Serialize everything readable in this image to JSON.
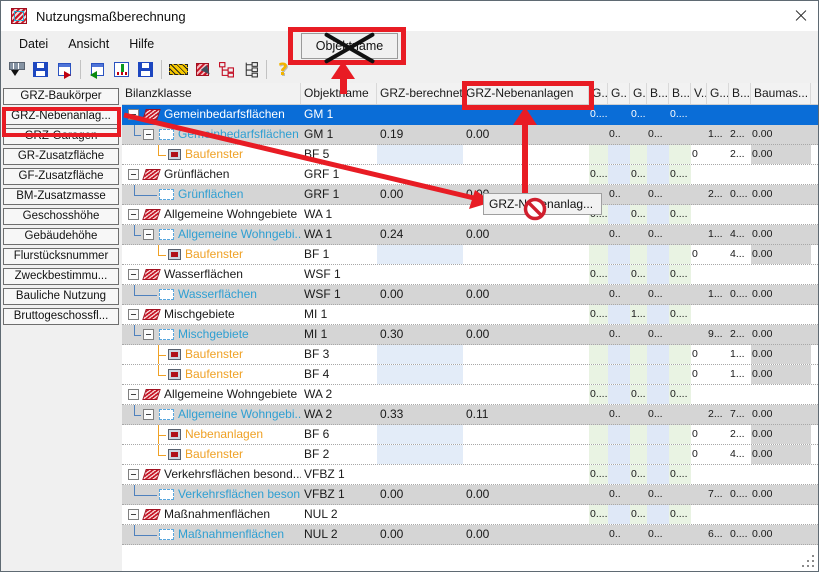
{
  "window": {
    "title": "Nutzungsmaßberechnung"
  },
  "menu": {
    "items": [
      "Datei",
      "Ansicht",
      "Hilfe"
    ]
  },
  "toolbar": {
    "icons": [
      "filter-columns-icon",
      "save-icon",
      "export-window-icon",
      "import-window-icon",
      "save-table-icon",
      "save-all-icon",
      "selection-box-icon",
      "select-object-icon",
      "tree-red-icon",
      "tree-outline-icon",
      "help-icon"
    ]
  },
  "sidebar": {
    "items": [
      {
        "label": "GRZ-Baukörper",
        "highlighted": false
      },
      {
        "label": "GRZ-Nebenanlag...",
        "highlighted": true
      },
      {
        "label": "GRZ-Garagen",
        "highlighted": false
      },
      {
        "label": "GR-Zusatzfläche",
        "highlighted": false
      },
      {
        "label": "GF-Zusatzfläche",
        "highlighted": false
      },
      {
        "label": "BM-Zusatzmasse",
        "highlighted": false
      },
      {
        "label": "Geschosshöhe",
        "highlighted": false
      },
      {
        "label": "Gebäudehöhe",
        "highlighted": false
      },
      {
        "label": "Flurstücksnummer",
        "highlighted": false
      },
      {
        "label": "Zweckbestimmu...",
        "highlighted": false
      },
      {
        "label": "Bauliche Nutzung",
        "highlighted": false
      },
      {
        "label": "Bruttogeschossfl...",
        "highlighted": false
      }
    ]
  },
  "table": {
    "columns": [
      "Bilanzklasse",
      "Objektname",
      "GRZ-berechnet",
      "GRZ-Nebenanlagen",
      "G...",
      "G..",
      "G..",
      "B...",
      "B...",
      "V..",
      "G...",
      "B...",
      "Baumas..."
    ],
    "rows": [
      {
        "kind": "parent",
        "selected": true,
        "conn": "none",
        "exp": true,
        "label": "Gemeinbedarfsflächen",
        "obj": "GM 1",
        "gb": "",
        "gn": "",
        "c": [
          "0....",
          "",
          "0...",
          "",
          "0....",
          "",
          "",
          "",
          ""
        ]
      },
      {
        "kind": "child",
        "selected": false,
        "conn": "L",
        "exp": true,
        "label": "Gemeinbedarfsflächen",
        "obj": "GM 1",
        "gb": "0.19",
        "gn": "0.00",
        "c": [
          "",
          "0..",
          "",
          "0...",
          "",
          "",
          "1...",
          "2...",
          "0.00"
        ]
      },
      {
        "kind": "leaf",
        "selected": false,
        "conn": "L",
        "exp": false,
        "label": "Baufenster",
        "obj": "BF 5",
        "gb": "",
        "gn": "",
        "c": [
          "",
          "",
          "",
          "",
          "",
          "0",
          "",
          "2...",
          "0.00"
        ]
      },
      {
        "kind": "parent",
        "selected": false,
        "conn": "none",
        "exp": true,
        "label": "Grünflächen",
        "obj": "GRF 1",
        "gb": "",
        "gn": "",
        "c": [
          "0....",
          "",
          "0...",
          "",
          "0....",
          "",
          "",
          "",
          ""
        ]
      },
      {
        "kind": "child",
        "selected": false,
        "conn": "L",
        "exp": false,
        "label": "Grünflächen",
        "obj": "GRF 1",
        "gb": "0.00",
        "gn": "0.00",
        "c": [
          "",
          "0..",
          "",
          "0...",
          "",
          "",
          "2...",
          "0....",
          "0.00"
        ]
      },
      {
        "kind": "parent",
        "selected": false,
        "conn": "none",
        "exp": true,
        "label": "Allgemeine Wohngebiete",
        "obj": "WA 1",
        "gb": "",
        "gn": "",
        "c": [
          "0....",
          "",
          "0...",
          "",
          "0....",
          "",
          "",
          "",
          ""
        ]
      },
      {
        "kind": "child",
        "selected": false,
        "conn": "L",
        "exp": true,
        "label": "Allgemeine Wohngebi...",
        "obj": "WA 1",
        "gb": "0.24",
        "gn": "0.00",
        "c": [
          "",
          "0..",
          "",
          "0...",
          "",
          "",
          "1...",
          "4...",
          "0.00"
        ]
      },
      {
        "kind": "leaf",
        "selected": false,
        "conn": "L",
        "exp": false,
        "label": "Baufenster",
        "obj": "BF 1",
        "gb": "",
        "gn": "",
        "c": [
          "",
          "",
          "",
          "",
          "",
          "0",
          "",
          "4...",
          "0.00"
        ]
      },
      {
        "kind": "parent",
        "selected": false,
        "conn": "none",
        "exp": true,
        "label": "Wasserflächen",
        "obj": "WSF 1",
        "gb": "",
        "gn": "",
        "c": [
          "0....",
          "",
          "0...",
          "",
          "0....",
          "",
          "",
          "",
          ""
        ]
      },
      {
        "kind": "child",
        "selected": false,
        "conn": "L",
        "exp": false,
        "label": "Wasserflächen",
        "obj": "WSF 1",
        "gb": "0.00",
        "gn": "0.00",
        "c": [
          "",
          "0..",
          "",
          "0...",
          "",
          "",
          "1...",
          "0....",
          "0.00"
        ]
      },
      {
        "kind": "parent",
        "selected": false,
        "conn": "none",
        "exp": true,
        "label": "Mischgebiete",
        "obj": "MI 1",
        "gb": "",
        "gn": "",
        "c": [
          "0....",
          "",
          "1...",
          "",
          "0....",
          "",
          "",
          "",
          ""
        ]
      },
      {
        "kind": "child",
        "selected": false,
        "conn": "L",
        "exp": true,
        "label": "Mischgebiete",
        "obj": "MI 1",
        "gb": "0.30",
        "gn": "0.00",
        "c": [
          "",
          "0..",
          "",
          "0...",
          "",
          "",
          "9...",
          "2...",
          "0.00"
        ]
      },
      {
        "kind": "leaf",
        "selected": false,
        "conn": "T",
        "exp": false,
        "label": "Baufenster",
        "obj": "BF 3",
        "gb": "",
        "gn": "",
        "c": [
          "",
          "",
          "",
          "",
          "",
          "0",
          "",
          "1...",
          "0.00"
        ]
      },
      {
        "kind": "leaf",
        "selected": false,
        "conn": "L",
        "exp": false,
        "label": "Baufenster",
        "obj": "BF 4",
        "gb": "",
        "gn": "",
        "c": [
          "",
          "",
          "",
          "",
          "",
          "0",
          "",
          "1...",
          "0.00"
        ]
      },
      {
        "kind": "parent",
        "selected": false,
        "conn": "none",
        "exp": true,
        "label": "Allgemeine Wohngebiete",
        "obj": "WA 2",
        "gb": "",
        "gn": "",
        "c": [
          "0....",
          "",
          "0...",
          "",
          "0....",
          "",
          "",
          "",
          ""
        ]
      },
      {
        "kind": "child",
        "selected": false,
        "conn": "L",
        "exp": true,
        "label": "Allgemeine Wohngebi...",
        "obj": "WA 2",
        "gb": "0.33",
        "gn": "0.11",
        "c": [
          "",
          "0..",
          "",
          "0...",
          "",
          "",
          "2...",
          "7...",
          "0.00"
        ]
      },
      {
        "kind": "leaf",
        "selected": false,
        "conn": "T",
        "exp": false,
        "label": "Nebenanlagen",
        "obj": "BF 6",
        "gb": "",
        "gn": "",
        "c": [
          "",
          "",
          "",
          "",
          "",
          "0",
          "",
          "2...",
          "0.00"
        ]
      },
      {
        "kind": "leaf",
        "selected": false,
        "conn": "L",
        "exp": false,
        "label": "Baufenster",
        "obj": "BF 2",
        "gb": "",
        "gn": "",
        "c": [
          "",
          "",
          "",
          "",
          "",
          "0",
          "",
          "4...",
          "0.00"
        ]
      },
      {
        "kind": "parent",
        "selected": false,
        "conn": "none",
        "exp": true,
        "label": "Verkehrsflächen besond...",
        "obj": "VFBZ 1",
        "gb": "",
        "gn": "",
        "c": [
          "0....",
          "",
          "0...",
          "",
          "0....",
          "",
          "",
          "",
          ""
        ]
      },
      {
        "kind": "child",
        "selected": false,
        "conn": "L",
        "exp": false,
        "label": "Verkehrsflächen beson...",
        "obj": "VFBZ 1",
        "gb": "0.00",
        "gn": "0.00",
        "c": [
          "",
          "0..",
          "",
          "0...",
          "",
          "",
          "7...",
          "0....",
          "0.00"
        ]
      },
      {
        "kind": "parent",
        "selected": false,
        "conn": "none",
        "exp": true,
        "label": "Maßnahmenflächen",
        "obj": "NUL 2",
        "gb": "",
        "gn": "",
        "c": [
          "0....",
          "",
          "0...",
          "",
          "0....",
          "",
          "",
          "",
          ""
        ]
      },
      {
        "kind": "child",
        "selected": false,
        "conn": "L",
        "exp": false,
        "label": "Maßnahmenflächen",
        "obj": "NUL 2",
        "gb": "0.00",
        "gn": "0.00",
        "c": [
          "",
          "0..",
          "",
          "0...",
          "",
          "",
          "6...",
          "0....",
          "0.00"
        ]
      }
    ]
  },
  "annotations": {
    "drag_button_label": "Objektname",
    "tooltip_label": "GRZ-Nebenanlag...",
    "annotation_color": "#e81c24"
  },
  "colors": {
    "selection": "#0a6dd7",
    "child_row_bg": "#d5d5d5",
    "child_text": "#2f9fd2",
    "leaf_text": "#efa125",
    "tint_green": "#e9f3e3",
    "tint_blue": "#dfe8f7"
  }
}
